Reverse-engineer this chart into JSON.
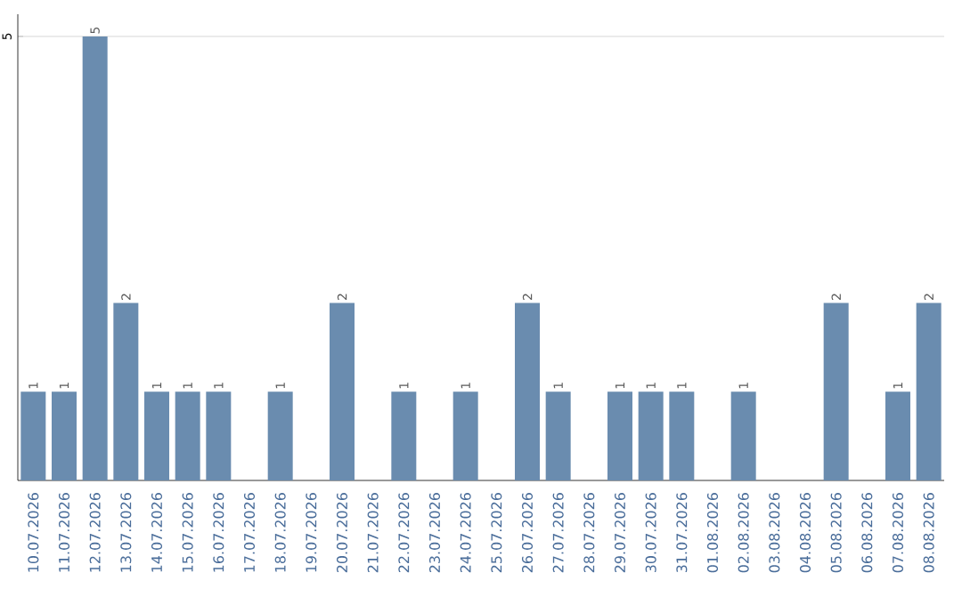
{
  "chart_data": {
    "type": "bar",
    "categories": [
      "10.07.2026",
      "11.07.2026",
      "12.07.2026",
      "13.07.2026",
      "14.07.2026",
      "15.07.2026",
      "16.07.2026",
      "17.07.2026",
      "18.07.2026",
      "19.07.2026",
      "20.07.2026",
      "21.07.2026",
      "22.07.2026",
      "23.07.2026",
      "24.07.2026",
      "25.07.2026",
      "26.07.2026",
      "27.07.2026",
      "28.07.2026",
      "29.07.2026",
      "30.07.2026",
      "31.07.2026",
      "01.08.2026",
      "02.08.2026",
      "03.08.2026",
      "04.08.2026",
      "05.08.2026",
      "06.08.2026",
      "07.08.2026",
      "08.08.2026"
    ],
    "values": [
      1,
      1,
      5,
      2,
      1,
      1,
      1,
      0,
      1,
      0,
      2,
      0,
      1,
      0,
      1,
      0,
      2,
      1,
      0,
      1,
      1,
      1,
      0,
      1,
      0,
      0,
      2,
      0,
      1,
      2
    ],
    "value_labels": [
      "1",
      "1",
      "5",
      "2",
      "1",
      "1",
      "1",
      null,
      "1",
      null,
      "2",
      null,
      "1",
      null,
      "1",
      null,
      "2",
      "1",
      null,
      "1",
      "1",
      "1",
      null,
      "1",
      null,
      null,
      "2",
      null,
      "1",
      "2"
    ],
    "color": "#6a8caf",
    "ylim": [
      0,
      5.25
    ],
    "yticks": [
      5
    ],
    "grid": "y"
  }
}
